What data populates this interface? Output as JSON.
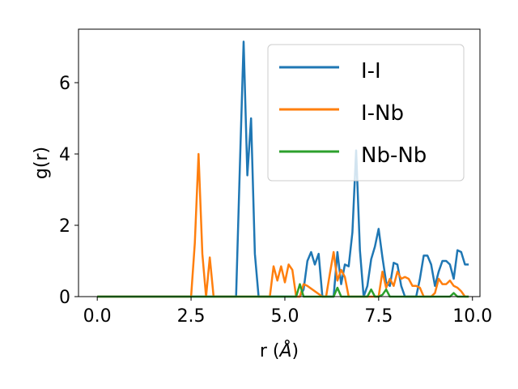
{
  "chart_data": {
    "type": "line",
    "xlabel_prefix": "r (",
    "xlabel_unit": "Å",
    "xlabel_suffix": ")",
    "ylabel": "g(r)",
    "xlim": [
      -0.5,
      10.2
    ],
    "ylim": [
      0,
      7.5
    ],
    "xticks": [
      0.0,
      2.5,
      5.0,
      7.5,
      10.0
    ],
    "xtick_labels": [
      "0.0",
      "2.5",
      "5.0",
      "7.5",
      "10.0"
    ],
    "yticks": [
      0,
      2,
      4,
      6
    ],
    "ytick_labels": [
      "0",
      "2",
      "4",
      "6"
    ],
    "grid": false,
    "legend_position": "top-right",
    "series": [
      {
        "name": "I-I",
        "color": "#1f77b4",
        "x": [
          0,
          3.7,
          3.8,
          3.9,
          4.0,
          4.1,
          4.2,
          4.3,
          5.4,
          5.5,
          5.6,
          5.7,
          5.8,
          5.9,
          6.0,
          6.1,
          6.2,
          6.3,
          6.4,
          6.5,
          6.6,
          6.7,
          6.8,
          6.9,
          7.0,
          7.1,
          7.2,
          7.3,
          7.4,
          7.5,
          7.6,
          7.7,
          7.8,
          7.9,
          8.0,
          8.1,
          8.2,
          8.3,
          8.4,
          8.5,
          8.6,
          8.7,
          8.8,
          8.9,
          9.0,
          9.1,
          9.2,
          9.3,
          9.4,
          9.5,
          9.6,
          9.7,
          9.8,
          9.9
        ],
        "y": [
          0,
          0,
          3.6,
          7.15,
          3.4,
          5.0,
          1.2,
          0,
          0,
          0.2,
          1.0,
          1.25,
          0.9,
          1.2,
          0,
          0,
          0,
          0,
          1.25,
          0.35,
          0.9,
          0.85,
          1.8,
          4.1,
          1.3,
          0,
          0.3,
          1.05,
          1.4,
          1.9,
          1.1,
          0.4,
          0.3,
          0.95,
          0.9,
          0.3,
          0,
          0,
          0,
          0,
          0.5,
          1.15,
          1.15,
          0.9,
          0.3,
          0.7,
          1.0,
          1.0,
          0.9,
          0.5,
          1.3,
          1.25,
          0.9,
          0.9
        ]
      },
      {
        "name": "I-Nb",
        "color": "#ff7f0e",
        "x": [
          0,
          2.5,
          2.6,
          2.7,
          2.8,
          2.9,
          3.0,
          3.1,
          4.6,
          4.7,
          4.8,
          4.9,
          5.0,
          5.1,
          5.2,
          5.3,
          5.4,
          5.5,
          5.6,
          6.0,
          6.1,
          6.2,
          6.3,
          6.4,
          6.5,
          6.6,
          6.7,
          6.8,
          7.5,
          7.6,
          7.7,
          7.8,
          7.9,
          8.0,
          8.1,
          8.2,
          8.3,
          8.4,
          8.5,
          8.6,
          8.7,
          8.8,
          8.9,
          9.0,
          9.1,
          9.2,
          9.3,
          9.4,
          9.5,
          9.6,
          9.7,
          9.8,
          9.9
        ],
        "y": [
          0,
          0,
          1.5,
          4.0,
          1.2,
          0,
          1.1,
          0,
          0,
          0.85,
          0.45,
          0.85,
          0.4,
          0.9,
          0.75,
          0,
          0,
          0.35,
          0.3,
          0,
          0,
          0.65,
          1.25,
          0.45,
          0.75,
          0.55,
          0,
          0,
          0,
          0.7,
          0.25,
          0.5,
          0.3,
          0.7,
          0.5,
          0.55,
          0.5,
          0.3,
          0.3,
          0.25,
          0,
          0,
          0,
          0.1,
          0.5,
          0.35,
          0.35,
          0.45,
          0.3,
          0.25,
          0.15,
          0,
          0
        ]
      },
      {
        "name": "Nb-Nb",
        "color": "#2ca02c",
        "x": [
          0,
          5.3,
          5.4,
          5.5,
          5.6,
          6.2,
          6.3,
          6.4,
          6.5,
          6.6,
          7.2,
          7.3,
          7.4,
          7.5,
          7.6,
          7.7,
          7.8,
          7.9,
          8.0,
          9.4,
          9.5,
          9.6,
          9.7,
          9.8,
          9.9
        ],
        "y": [
          0,
          0,
          0.35,
          0,
          0,
          0,
          0,
          0.25,
          0,
          0,
          0,
          0.2,
          0,
          0,
          0.05,
          0.2,
          0,
          0,
          0,
          0,
          0.1,
          0,
          0,
          0,
          0
        ]
      }
    ]
  }
}
